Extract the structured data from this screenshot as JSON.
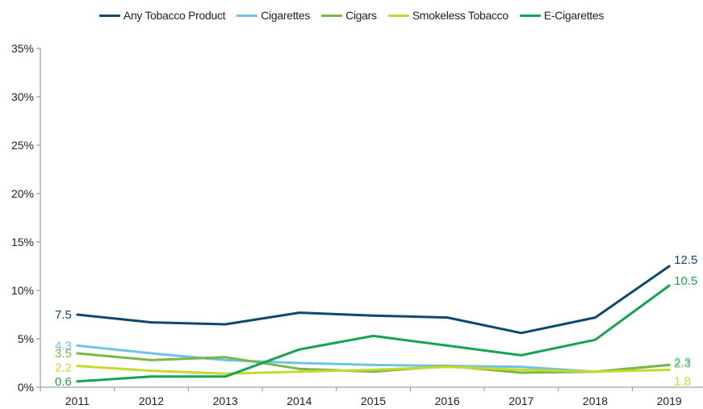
{
  "chart_data": {
    "type": "line",
    "title": "",
    "xlabel": "",
    "ylabel": "",
    "categories": [
      "2011",
      "2012",
      "2013",
      "2014",
      "2015",
      "2016",
      "2017",
      "2018",
      "2019"
    ],
    "ylim": [
      0,
      35
    ],
    "yticks": [
      0,
      5,
      10,
      15,
      20,
      25,
      30,
      35
    ],
    "ytick_labels": [
      "0%",
      "5%",
      "10%",
      "15%",
      "20%",
      "25%",
      "30%",
      "35%"
    ],
    "grid": false,
    "legend_position": "top",
    "series": [
      {
        "name": "Any Tobacco Product",
        "color": "#0b4a6f",
        "values": [
          7.5,
          6.7,
          6.5,
          7.7,
          7.4,
          7.2,
          5.6,
          7.2,
          12.5
        ],
        "labels": {
          "start": "7.5",
          "end": "12.5"
        }
      },
      {
        "name": "Cigarettes",
        "color": "#6cc4e8",
        "values": [
          4.3,
          3.5,
          2.8,
          2.5,
          2.3,
          2.2,
          2.1,
          1.6,
          2.3
        ],
        "labels": {
          "start": "4.3",
          "end": "2.3"
        }
      },
      {
        "name": "Cigars",
        "color": "#78b943",
        "values": [
          3.5,
          2.8,
          3.1,
          1.9,
          1.6,
          2.2,
          1.5,
          1.6,
          2.3
        ],
        "labels": {
          "start": "3.5",
          "end": "2.3"
        }
      },
      {
        "name": "Smokeless Tobacco",
        "color": "#c8d82c",
        "values": [
          2.2,
          1.7,
          1.4,
          1.6,
          1.8,
          2.1,
          1.8,
          1.6,
          1.8
        ],
        "labels": {
          "start": "2.2",
          "end": "1.8"
        }
      },
      {
        "name": "E-Cigarettes",
        "color": "#16a352",
        "values": [
          0.6,
          1.1,
          1.1,
          3.9,
          5.3,
          4.3,
          3.3,
          4.9,
          10.5
        ],
        "labels": {
          "start": "0.6",
          "end": "10.5"
        }
      }
    ]
  }
}
